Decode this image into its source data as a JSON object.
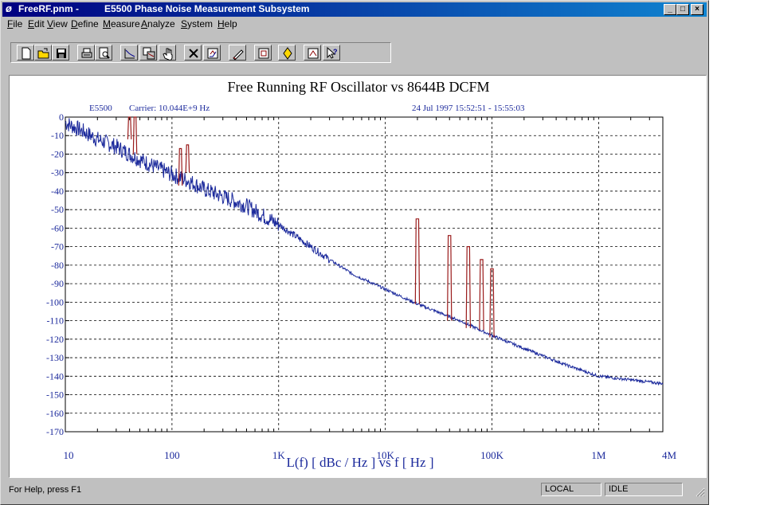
{
  "window": {
    "file_title": "FreeRF.pnm -",
    "app_title": "E5500 Phase Noise Measurement Subsystem",
    "icon_glyph": "ø",
    "minimize": "_",
    "maximize": "□",
    "close": "×"
  },
  "menu": [
    {
      "label": "File",
      "u": "F",
      "rest": "ile"
    },
    {
      "label": "Edit",
      "u": "E",
      "rest": "dit"
    },
    {
      "label": "View",
      "u": "V",
      "rest": "iew"
    },
    {
      "label": "Define",
      "u": "D",
      "rest": "efine"
    },
    {
      "label": "Measure",
      "u": "M",
      "rest": "easure"
    },
    {
      "label": "Analyze",
      "u": "A",
      "rest": "nalyze"
    },
    {
      "label": "System",
      "u": "S",
      "rest": "ystem"
    },
    {
      "label": "Help",
      "u": "H",
      "rest": "elp"
    }
  ],
  "toolbar": [
    "new-icon",
    "open-icon",
    "save-icon",
    "print-icon",
    "print-preview-icon",
    "graph-icon",
    "copy-graph-icon",
    "pan-hand-icon",
    "clear-icon",
    "refresh-icon",
    "edit-graph-icon",
    "table-icon",
    "marker-icon",
    "scale-icon",
    "help-pointer-icon"
  ],
  "chart_data": {
    "type": "line",
    "title": "Free Running RF Oscillator vs 8644B DCFM",
    "instrument": "E5500",
    "carrier": "Carrier: 10.044E+9 Hz",
    "timestamp": "24 Jul 1997  15:52:51 - 15:55:03",
    "xlabel": "L(f)  [ dBc / Hz ]  vs  f  [ Hz ]",
    "xscale": "log",
    "xlim": [
      10,
      4000000
    ],
    "ylim": [
      -170,
      0
    ],
    "grid": true,
    "x_tick_labels": [
      "10",
      "100",
      "1K",
      "10K",
      "100K",
      "1M",
      "4M"
    ],
    "x_tick_values": [
      10,
      100,
      1000,
      10000,
      100000,
      1000000,
      4000000
    ],
    "y_ticks": [
      0,
      -10,
      -20,
      -30,
      -40,
      -50,
      -60,
      -70,
      -80,
      -90,
      -100,
      -110,
      -120,
      -130,
      -140,
      -150,
      -160,
      -170
    ],
    "series": [
      {
        "color": "#1c2a9c",
        "x": [
          10,
          15,
          20,
          30,
          40,
          50,
          70,
          100,
          150,
          200,
          300,
          500,
          700,
          1000,
          2000,
          3000,
          5000,
          10000,
          20000,
          30000,
          50000,
          100000,
          200000,
          300000,
          500000,
          1000000,
          2000000,
          4000000
        ],
        "y": [
          -3,
          -8,
          -12,
          -16,
          -20,
          -23,
          -27,
          -31,
          -35,
          -39,
          -43,
          -48,
          -53,
          -58,
          -70,
          -77,
          -85,
          -93,
          -101,
          -105,
          -110,
          -118,
          -125,
          -129,
          -134,
          -140,
          -142,
          -144
        ]
      },
      {
        "color": "#9a1b1b",
        "spurs": [
          {
            "x": 40,
            "top": 0,
            "base": -12
          },
          {
            "x": 45,
            "top": 0,
            "base": -20
          },
          {
            "x": 120,
            "top": -17,
            "base": -37
          },
          {
            "x": 140,
            "top": -15,
            "base": -30
          },
          {
            "x": 20000,
            "top": -55,
            "base": -101
          },
          {
            "x": 40000,
            "top": -64,
            "base": -110
          },
          {
            "x": 60000,
            "top": -70,
            "base": -114
          },
          {
            "x": 80000,
            "top": -77,
            "base": -115
          },
          {
            "x": 100000,
            "top": -82,
            "base": -119
          }
        ]
      }
    ]
  },
  "status": {
    "help": "For Help, press F1",
    "mode": "LOCAL",
    "state": "IDLE"
  }
}
